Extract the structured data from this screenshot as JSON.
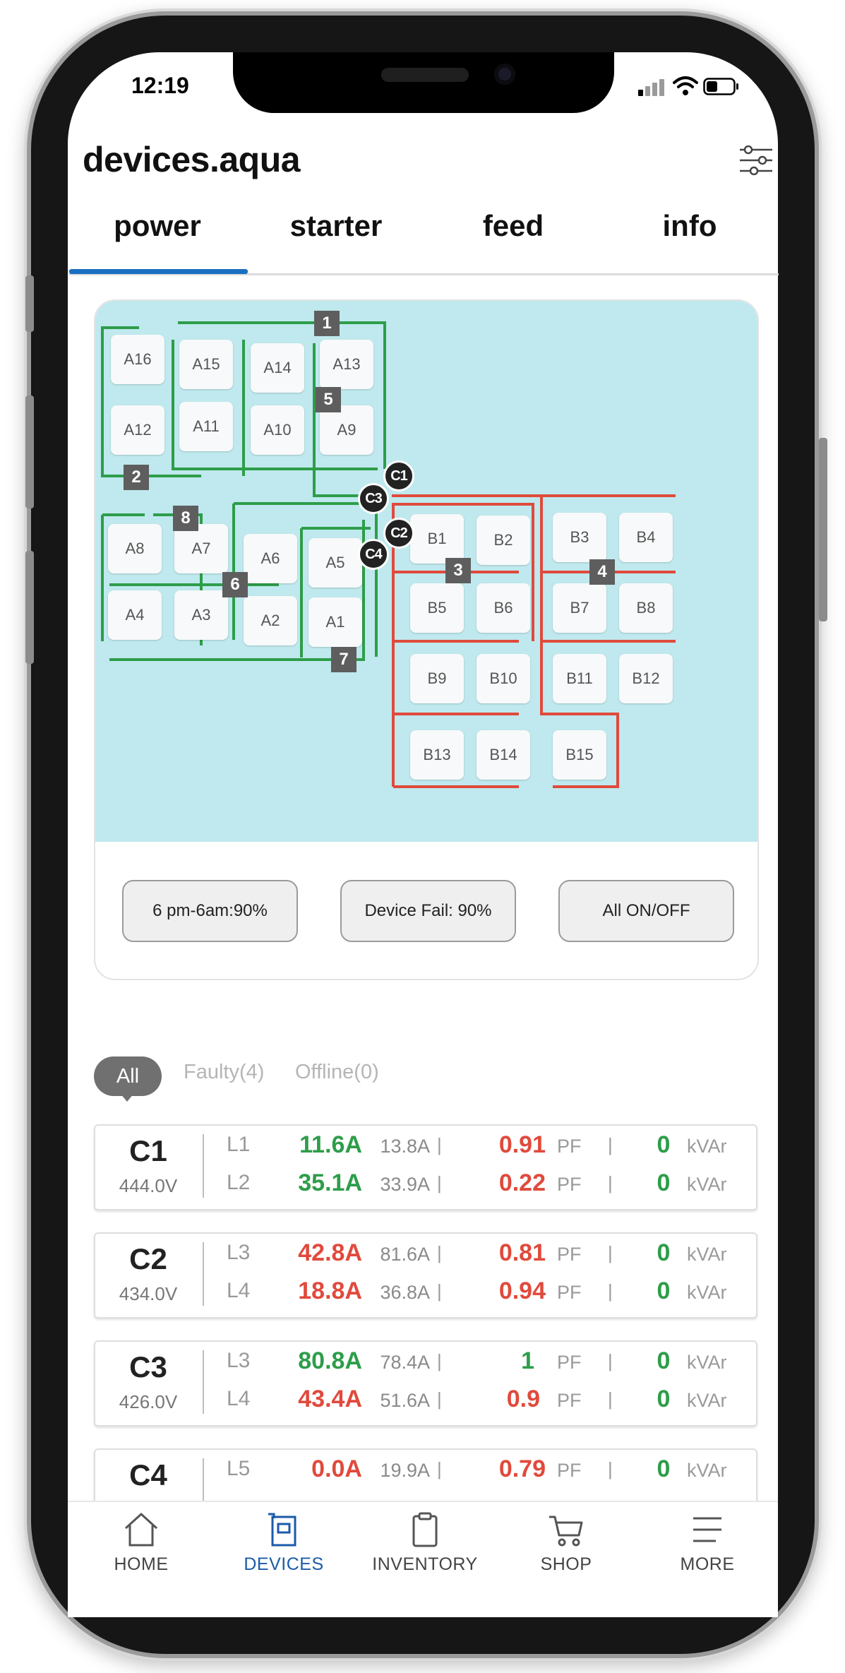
{
  "status_bar": {
    "time": "12:19"
  },
  "app": {
    "title": "devices.aqua"
  },
  "tabs": [
    {
      "label": "power",
      "active": true
    },
    {
      "label": "starter",
      "active": false
    },
    {
      "label": "feed",
      "active": false
    },
    {
      "label": "info",
      "active": false
    }
  ],
  "map": {
    "cells_a": [
      "A16",
      "A15",
      "A14",
      "A13",
      "A12",
      "A11",
      "A10",
      "A9",
      "A8",
      "A7",
      "A6",
      "A5",
      "A4",
      "A3",
      "A2",
      "A1"
    ],
    "cells_b": [
      "B1",
      "B2",
      "B3",
      "B4",
      "B5",
      "B6",
      "B7",
      "B8",
      "B9",
      "B10",
      "B11",
      "B12",
      "B13",
      "B14",
      "B15"
    ],
    "zones": [
      "1",
      "2",
      "3",
      "4",
      "5",
      "6",
      "7",
      "8"
    ],
    "controllers": [
      "C1",
      "C2",
      "C3",
      "C4"
    ],
    "colors": {
      "group_a": "#2e9d4a",
      "group_b": "#e04a3c",
      "water": "#bfe9ee"
    }
  },
  "actions": {
    "schedule": "6 pm-6am:90%",
    "device_fail": "Device Fail: 90%",
    "all_on_off": "All ON/OFF"
  },
  "filters": {
    "all": "All",
    "faulty": "Faulty(4)",
    "offline": "Offline(0)"
  },
  "controllers": [
    {
      "name": "C1",
      "voltage": "444.0V",
      "lines": [
        {
          "line": "L1",
          "current": "11.6A",
          "current_status": "ok",
          "rated": "13.8A",
          "pf": "0.91",
          "pf_unit": "PF",
          "kvar": "0",
          "kvar_unit": "kVAr"
        },
        {
          "line": "L2",
          "current": "35.1A",
          "current_status": "ok",
          "rated": "33.9A",
          "pf": "0.22",
          "pf_unit": "PF",
          "kvar": "0",
          "kvar_unit": "kVAr"
        }
      ]
    },
    {
      "name": "C2",
      "voltage": "434.0V",
      "lines": [
        {
          "line": "L3",
          "current": "42.8A",
          "current_status": "fault",
          "rated": "81.6A",
          "pf": "0.81",
          "pf_unit": "PF",
          "kvar": "0",
          "kvar_unit": "kVAr"
        },
        {
          "line": "L4",
          "current": "18.8A",
          "current_status": "fault",
          "rated": "36.8A",
          "pf": "0.94",
          "pf_unit": "PF",
          "kvar": "0",
          "kvar_unit": "kVAr"
        }
      ]
    },
    {
      "name": "C3",
      "voltage": "426.0V",
      "lines": [
        {
          "line": "L3",
          "current": "80.8A",
          "current_status": "ok",
          "rated": "78.4A",
          "pf": "1",
          "pf_status": "ok",
          "pf_unit": "PF",
          "kvar": "0",
          "kvar_unit": "kVAr"
        },
        {
          "line": "L4",
          "current": "43.4A",
          "current_status": "fault",
          "rated": "51.6A",
          "pf": "0.9",
          "pf_unit": "PF",
          "kvar": "0",
          "kvar_unit": "kVAr"
        }
      ]
    },
    {
      "name": "C4",
      "voltage": "",
      "lines": [
        {
          "line": "L5",
          "current": "0.0A",
          "current_status": "fault",
          "rated": "19.9A",
          "pf": "0.79",
          "pf_unit": "PF",
          "kvar": "0",
          "kvar_unit": "kVAr"
        }
      ]
    }
  ],
  "bottom_nav": [
    {
      "label": "HOME",
      "icon": "home-icon",
      "active": false
    },
    {
      "label": "DEVICES",
      "icon": "device-icon",
      "active": true
    },
    {
      "label": "INVENTORY",
      "icon": "clipboard-icon",
      "active": false
    },
    {
      "label": "SHOP",
      "icon": "cart-icon",
      "active": false
    },
    {
      "label": "MORE",
      "icon": "menu-icon",
      "active": false
    }
  ]
}
